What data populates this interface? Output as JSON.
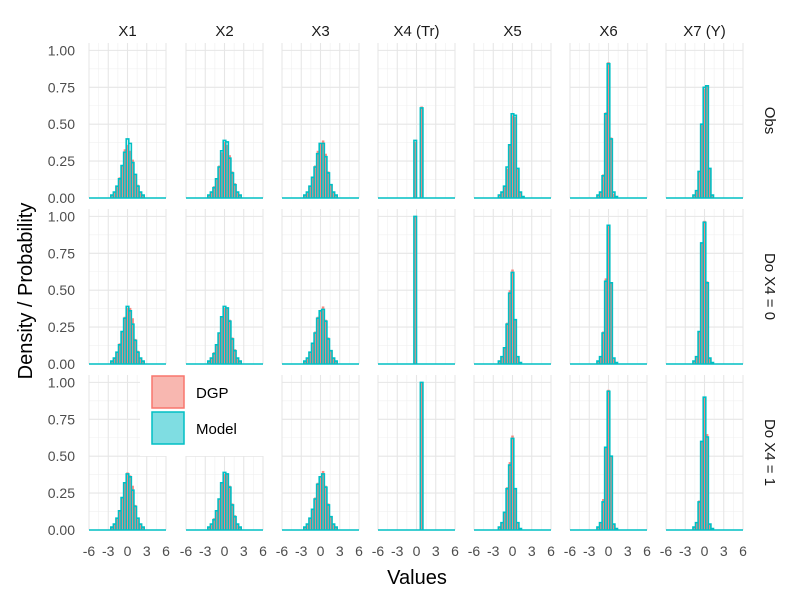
{
  "chart_data": {
    "type": "histogram-facet-grid",
    "xlabel": "Values",
    "ylabel": "Density / Probability",
    "xlim": [
      -6,
      6
    ],
    "ylim": [
      0,
      1.05
    ],
    "x_ticks": [
      "-6",
      "-3",
      "0",
      "3",
      "6"
    ],
    "y_ticks": [
      "0.00",
      "0.25",
      "0.50",
      "0.75",
      "1.00"
    ],
    "columns": [
      "X1",
      "X2",
      "X3",
      "X4 (Tr)",
      "X5",
      "X6",
      "X7 (Y)"
    ],
    "rows": [
      "Obs",
      "Do X4 = 0",
      "Do X4 = 1"
    ],
    "legend": {
      "placement": "inside-left",
      "items": [
        {
          "label": "DGP",
          "fill": "#F8B7B0",
          "stroke": "#F8766D"
        },
        {
          "label": "Model",
          "fill": "#7FDDE2",
          "stroke": "#00BFC4"
        }
      ]
    },
    "series_colors": {
      "DGP": "#F8766D",
      "Model": "#00BFC4"
    },
    "panels": [
      {
        "row": 0,
        "col": 0,
        "bin_width": 0.4,
        "bars": [
          [
            -2.4,
            0.02,
            0.02
          ],
          [
            -2.0,
            0.04,
            0.04
          ],
          [
            -1.6,
            0.08,
            0.08
          ],
          [
            -1.2,
            0.14,
            0.13
          ],
          [
            -0.8,
            0.22,
            0.22
          ],
          [
            -0.4,
            0.33,
            0.31
          ],
          [
            0.0,
            0.36,
            0.4
          ],
          [
            0.4,
            0.32,
            0.37
          ],
          [
            0.8,
            0.26,
            0.24
          ],
          [
            1.2,
            0.16,
            0.16
          ],
          [
            1.6,
            0.09,
            0.08
          ],
          [
            2.0,
            0.04,
            0.04
          ],
          [
            2.4,
            0.02,
            0.02
          ]
        ]
      },
      {
        "row": 0,
        "col": 1,
        "bin_width": 0.4,
        "bars": [
          [
            -2.4,
            0.02,
            0.02
          ],
          [
            -2.0,
            0.04,
            0.04
          ],
          [
            -1.6,
            0.08,
            0.07
          ],
          [
            -1.2,
            0.13,
            0.13
          ],
          [
            -0.8,
            0.22,
            0.21
          ],
          [
            -0.4,
            0.31,
            0.32
          ],
          [
            0.0,
            0.38,
            0.39
          ],
          [
            0.4,
            0.36,
            0.38
          ],
          [
            0.8,
            0.29,
            0.27
          ],
          [
            1.2,
            0.18,
            0.17
          ],
          [
            1.6,
            0.1,
            0.09
          ],
          [
            2.0,
            0.04,
            0.04
          ],
          [
            2.4,
            0.02,
            0.02
          ]
        ]
      },
      {
        "row": 0,
        "col": 2,
        "bin_width": 0.4,
        "bars": [
          [
            -2.4,
            0.02,
            0.02
          ],
          [
            -2.0,
            0.04,
            0.04
          ],
          [
            -1.6,
            0.08,
            0.08
          ],
          [
            -1.2,
            0.14,
            0.14
          ],
          [
            -0.8,
            0.22,
            0.21
          ],
          [
            -0.4,
            0.32,
            0.3
          ],
          [
            0.0,
            0.37,
            0.37
          ],
          [
            0.4,
            0.39,
            0.37
          ],
          [
            0.8,
            0.3,
            0.28
          ],
          [
            1.2,
            0.18,
            0.17
          ],
          [
            1.6,
            0.09,
            0.09
          ],
          [
            2.0,
            0.04,
            0.04
          ],
          [
            2.4,
            0.02,
            0.02
          ]
        ]
      },
      {
        "row": 0,
        "col": 3,
        "bin_width": 0.4,
        "bars": [
          [
            -0.2,
            0.38,
            0.39
          ],
          [
            0.8,
            0.62,
            0.61
          ]
        ]
      },
      {
        "row": 0,
        "col": 4,
        "bin_width": 0.4,
        "bars": [
          [
            -2.0,
            0.02,
            0.02
          ],
          [
            -1.6,
            0.04,
            0.04
          ],
          [
            -1.2,
            0.08,
            0.08
          ],
          [
            -0.8,
            0.2,
            0.21
          ],
          [
            -0.4,
            0.36,
            0.36
          ],
          [
            0.0,
            0.56,
            0.57
          ],
          [
            0.4,
            0.55,
            0.56
          ],
          [
            0.8,
            0.2,
            0.2
          ],
          [
            1.2,
            0.04,
            0.04
          ],
          [
            1.6,
            0.01,
            0.01
          ]
        ]
      },
      {
        "row": 0,
        "col": 5,
        "bin_width": 0.4,
        "bars": [
          [
            -1.6,
            0.02,
            0.02
          ],
          [
            -1.2,
            0.04,
            0.04
          ],
          [
            -0.8,
            0.16,
            0.15
          ],
          [
            -0.4,
            0.58,
            0.57
          ],
          [
            0.0,
            0.92,
            0.91
          ],
          [
            0.4,
            0.41,
            0.4
          ],
          [
            0.8,
            0.03,
            0.04
          ],
          [
            1.2,
            0.01,
            0.01
          ]
        ]
      },
      {
        "row": 0,
        "col": 6,
        "bin_width": 0.4,
        "bars": [
          [
            -1.6,
            0.02,
            0.02
          ],
          [
            -1.2,
            0.05,
            0.05
          ],
          [
            -0.8,
            0.18,
            0.18
          ],
          [
            -0.4,
            0.5,
            0.5
          ],
          [
            0.0,
            0.74,
            0.75
          ],
          [
            0.4,
            0.76,
            0.76
          ],
          [
            0.8,
            0.2,
            0.2
          ],
          [
            1.2,
            0.02,
            0.02
          ]
        ]
      },
      {
        "row": 1,
        "col": 0,
        "bin_width": 0.4,
        "bars": [
          [
            -2.4,
            0.02,
            0.02
          ],
          [
            -2.0,
            0.04,
            0.04
          ],
          [
            -1.6,
            0.08,
            0.08
          ],
          [
            -1.2,
            0.14,
            0.13
          ],
          [
            -0.8,
            0.22,
            0.22
          ],
          [
            -0.4,
            0.32,
            0.31
          ],
          [
            0.0,
            0.38,
            0.39
          ],
          [
            0.4,
            0.38,
            0.36
          ],
          [
            0.8,
            0.31,
            0.27
          ],
          [
            1.2,
            0.17,
            0.16
          ],
          [
            1.6,
            0.09,
            0.08
          ],
          [
            2.0,
            0.04,
            0.04
          ],
          [
            2.4,
            0.02,
            0.02
          ]
        ]
      },
      {
        "row": 1,
        "col": 1,
        "bin_width": 0.4,
        "bars": [
          [
            -2.4,
            0.02,
            0.02
          ],
          [
            -2.0,
            0.04,
            0.04
          ],
          [
            -1.6,
            0.08,
            0.07
          ],
          [
            -1.2,
            0.13,
            0.13
          ],
          [
            -0.8,
            0.21,
            0.21
          ],
          [
            -0.4,
            0.32,
            0.32
          ],
          [
            0.0,
            0.38,
            0.39
          ],
          [
            0.4,
            0.38,
            0.38
          ],
          [
            0.8,
            0.3,
            0.29
          ],
          [
            1.2,
            0.18,
            0.17
          ],
          [
            1.6,
            0.1,
            0.09
          ],
          [
            2.0,
            0.04,
            0.04
          ],
          [
            2.4,
            0.02,
            0.02
          ]
        ]
      },
      {
        "row": 1,
        "col": 2,
        "bin_width": 0.4,
        "bars": [
          [
            -2.4,
            0.02,
            0.02
          ],
          [
            -2.0,
            0.04,
            0.04
          ],
          [
            -1.6,
            0.08,
            0.08
          ],
          [
            -1.2,
            0.14,
            0.14
          ],
          [
            -0.8,
            0.22,
            0.21
          ],
          [
            -0.4,
            0.32,
            0.31
          ],
          [
            0.0,
            0.36,
            0.36
          ],
          [
            0.4,
            0.39,
            0.37
          ],
          [
            0.8,
            0.3,
            0.29
          ],
          [
            1.2,
            0.18,
            0.17
          ],
          [
            1.6,
            0.09,
            0.09
          ],
          [
            2.0,
            0.04,
            0.04
          ],
          [
            2.4,
            0.02,
            0.02
          ]
        ]
      },
      {
        "row": 1,
        "col": 3,
        "bin_width": 0.4,
        "bars": [
          [
            -0.2,
            1.0,
            1.0
          ]
        ]
      },
      {
        "row": 1,
        "col": 4,
        "bin_width": 0.4,
        "bars": [
          [
            -2.0,
            0.02,
            0.02
          ],
          [
            -1.6,
            0.05,
            0.05
          ],
          [
            -1.2,
            0.11,
            0.11
          ],
          [
            -0.8,
            0.28,
            0.27
          ],
          [
            -0.4,
            0.5,
            0.48
          ],
          [
            0.0,
            0.64,
            0.62
          ],
          [
            0.4,
            0.3,
            0.3
          ],
          [
            0.8,
            0.05,
            0.05
          ],
          [
            1.2,
            0.01,
            0.01
          ]
        ]
      },
      {
        "row": 1,
        "col": 5,
        "bin_width": 0.4,
        "bars": [
          [
            -1.6,
            0.02,
            0.02
          ],
          [
            -1.2,
            0.05,
            0.05
          ],
          [
            -0.8,
            0.22,
            0.21
          ],
          [
            -0.4,
            0.58,
            0.56
          ],
          [
            0.0,
            0.94,
            0.94
          ],
          [
            0.4,
            0.55,
            0.55
          ],
          [
            0.8,
            0.04,
            0.04
          ],
          [
            1.2,
            0.01,
            0.01
          ]
        ]
      },
      {
        "row": 1,
        "col": 6,
        "bin_width": 0.4,
        "bars": [
          [
            -1.6,
            0.02,
            0.02
          ],
          [
            -1.2,
            0.05,
            0.05
          ],
          [
            -0.8,
            0.22,
            0.22
          ],
          [
            -0.4,
            0.82,
            0.82
          ],
          [
            0.0,
            0.97,
            0.96
          ],
          [
            0.4,
            0.56,
            0.55
          ],
          [
            0.8,
            0.04,
            0.04
          ],
          [
            1.2,
            0.01,
            0.01
          ]
        ]
      },
      {
        "row": 2,
        "col": 0,
        "bin_width": 0.4,
        "bars": [
          [
            -2.4,
            0.02,
            0.02
          ],
          [
            -2.0,
            0.04,
            0.04
          ],
          [
            -1.6,
            0.08,
            0.08
          ],
          [
            -1.2,
            0.13,
            0.13
          ],
          [
            -0.8,
            0.22,
            0.22
          ],
          [
            -0.4,
            0.32,
            0.32
          ],
          [
            0.0,
            0.39,
            0.38
          ],
          [
            0.4,
            0.37,
            0.36
          ],
          [
            0.8,
            0.3,
            0.27
          ],
          [
            1.2,
            0.17,
            0.16
          ],
          [
            1.6,
            0.08,
            0.08
          ],
          [
            2.0,
            0.04,
            0.04
          ],
          [
            2.4,
            0.02,
            0.02
          ]
        ]
      },
      {
        "row": 2,
        "col": 1,
        "bin_width": 0.4,
        "bars": [
          [
            -2.4,
            0.02,
            0.02
          ],
          [
            -2.0,
            0.04,
            0.04
          ],
          [
            -1.6,
            0.08,
            0.07
          ],
          [
            -1.2,
            0.13,
            0.13
          ],
          [
            -0.8,
            0.21,
            0.21
          ],
          [
            -0.4,
            0.32,
            0.32
          ],
          [
            0.0,
            0.38,
            0.39
          ],
          [
            0.4,
            0.38,
            0.38
          ],
          [
            0.8,
            0.3,
            0.29
          ],
          [
            1.2,
            0.18,
            0.17
          ],
          [
            1.6,
            0.1,
            0.09
          ],
          [
            2.0,
            0.04,
            0.04
          ],
          [
            2.4,
            0.02,
            0.02
          ]
        ]
      },
      {
        "row": 2,
        "col": 2,
        "bin_width": 0.4,
        "bars": [
          [
            -2.4,
            0.02,
            0.02
          ],
          [
            -2.0,
            0.04,
            0.04
          ],
          [
            -1.6,
            0.08,
            0.08
          ],
          [
            -1.2,
            0.14,
            0.14
          ],
          [
            -0.8,
            0.22,
            0.21
          ],
          [
            -0.4,
            0.32,
            0.31
          ],
          [
            0.0,
            0.36,
            0.36
          ],
          [
            0.4,
            0.4,
            0.38
          ],
          [
            0.8,
            0.3,
            0.29
          ],
          [
            1.2,
            0.18,
            0.17
          ],
          [
            1.6,
            0.09,
            0.09
          ],
          [
            2.0,
            0.04,
            0.04
          ],
          [
            2.4,
            0.02,
            0.02
          ]
        ]
      },
      {
        "row": 2,
        "col": 3,
        "bin_width": 0.4,
        "bars": [
          [
            0.8,
            1.0,
            1.0
          ]
        ]
      },
      {
        "row": 2,
        "col": 4,
        "bin_width": 0.4,
        "bars": [
          [
            -2.0,
            0.02,
            0.02
          ],
          [
            -1.6,
            0.05,
            0.05
          ],
          [
            -1.2,
            0.12,
            0.12
          ],
          [
            -0.8,
            0.29,
            0.28
          ],
          [
            -0.4,
            0.46,
            0.44
          ],
          [
            0.0,
            0.64,
            0.62
          ],
          [
            0.4,
            0.28,
            0.28
          ],
          [
            0.8,
            0.05,
            0.05
          ],
          [
            1.2,
            0.01,
            0.01
          ]
        ]
      },
      {
        "row": 2,
        "col": 5,
        "bin_width": 0.4,
        "bars": [
          [
            -1.6,
            0.02,
            0.02
          ],
          [
            -1.2,
            0.05,
            0.05
          ],
          [
            -0.8,
            0.21,
            0.19
          ],
          [
            -0.4,
            0.56,
            0.56
          ],
          [
            0.0,
            0.95,
            0.94
          ],
          [
            0.4,
            0.5,
            0.5
          ],
          [
            0.8,
            0.04,
            0.04
          ],
          [
            1.2,
            0.01,
            0.01
          ]
        ]
      },
      {
        "row": 2,
        "col": 6,
        "bin_width": 0.4,
        "bars": [
          [
            -1.6,
            0.02,
            0.02
          ],
          [
            -1.2,
            0.05,
            0.05
          ],
          [
            -0.8,
            0.2,
            0.19
          ],
          [
            -0.4,
            0.6,
            0.6
          ],
          [
            0.0,
            0.9,
            0.9
          ],
          [
            0.4,
            0.65,
            0.63
          ],
          [
            0.8,
            0.04,
            0.04
          ],
          [
            1.2,
            0.01,
            0.01
          ]
        ]
      }
    ]
  }
}
